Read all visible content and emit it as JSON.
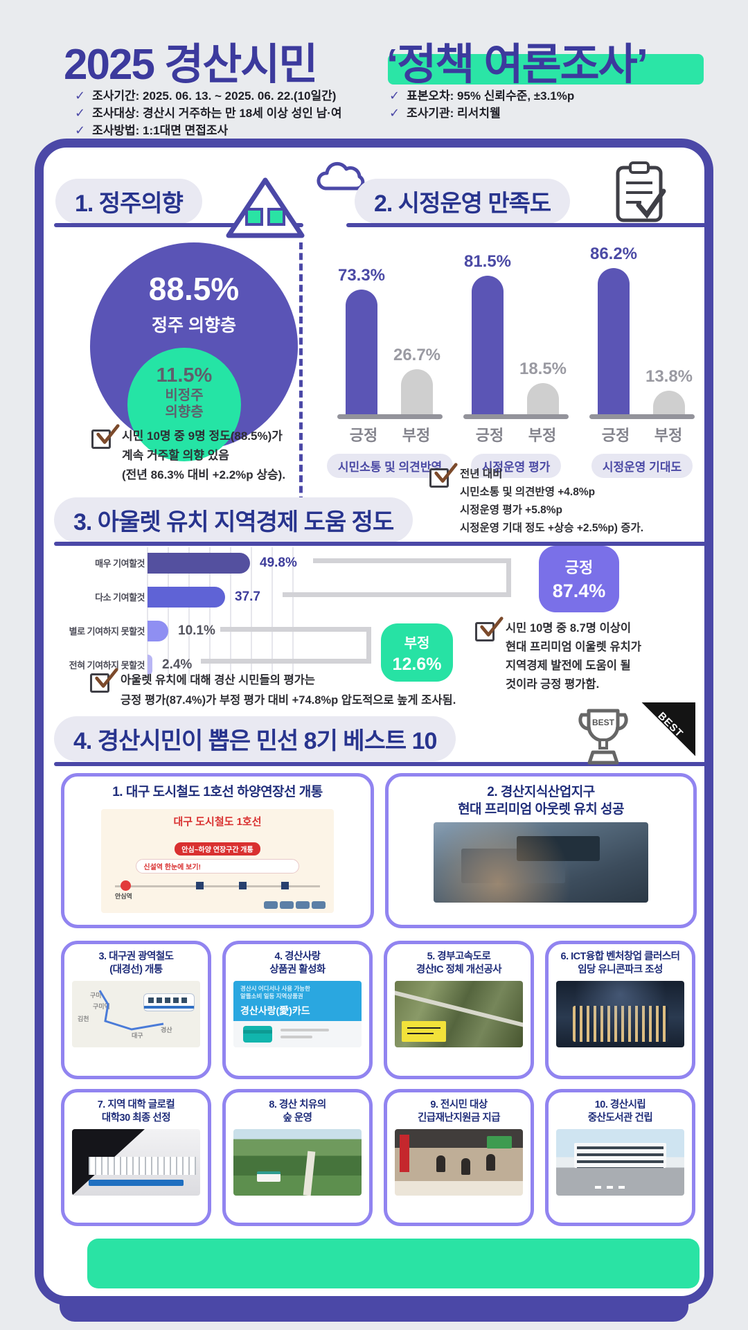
{
  "icons": {
    "check_glyph": "✓"
  },
  "colors": {
    "accent_purple": "#4b48a7",
    "accent_green": "#2be5a6",
    "title_navy": "#28348e",
    "bar_positive": "#5b55b5",
    "bar_negative": "#cfcfcf",
    "positive_box": "#7a70e8",
    "negative_box": "#27e2a4",
    "card_border": "#9184f0"
  },
  "header": {
    "title_left": "2025 경산시민",
    "title_right": "‘정책 여론조사’",
    "bullets_left": [
      "조사기간: 2025. 06. 13. ~ 2025. 06. 22.(10일간)",
      "조사대상: 경산시 거주하는 만 18세 이상 성인 남·여",
      "조사방법: 1:1대면 면접조사"
    ],
    "bullets_right": [
      "표본오차: 95% 신뢰수준, ±3.1%p",
      "조사기관: 리서치웰"
    ]
  },
  "section1": {
    "title": "1. 정주의향",
    "donut": {
      "main_value": "88.5%",
      "main_label": "정주 의향층",
      "sub_value": "11.5%",
      "sub_label_line1": "비정주",
      "sub_label_line2": "의향층"
    },
    "note_lines": [
      "시민 10명 중 9명 정도(88.5%)가",
      "계속 거주할 의향 있음",
      "(전년 86.3% 대비 +2.2%p 상승)."
    ]
  },
  "section2": {
    "title": "2. 시정운영 만족도",
    "note_lines": [
      "전년 대비",
      "시민소통 및 의견반영 +4.8%p",
      "시정운영 평가 +5.8%p",
      "시정운영 기대 정도 +상승 +2.5%p) 증가."
    ]
  },
  "section3": {
    "title": "3. 아울렛 유치 지역경제 도움 정도",
    "positive_box": {
      "label": "긍정",
      "value": "87.4%"
    },
    "negative_box": {
      "label": "부정",
      "value": "12.6%"
    },
    "note_left_lines": [
      "아울렛 유치에 대해 경산 시민들의 평가는",
      "긍정 평가(87.4%)가 부정 평가 대비 +74.8%p 압도적으로 높게 조사됨."
    ],
    "note_right_lines": [
      "시민 10명 중 8.7명 이상이",
      "현대 프리미엄 이울렛 유치가",
      "지역경제 발전에 도움이 될",
      "것이라 긍정 평가함."
    ]
  },
  "section4": {
    "title": "4. 경산시민이 뽑은 민선 8기 베스트 10",
    "trophy_label": "BEST",
    "ribbon_label": "BEST",
    "cards": [
      {
        "title_lines": [
          "1. 대구 도시철도 1호선 하양연장선 개통"
        ],
        "image": {
          "heading": "대구 도시철도 1호선",
          "badge": "안심~하양 연장구간 개통",
          "search": "신설역 한눈에 보기!",
          "station": "안심역"
        }
      },
      {
        "title_lines": [
          "2. 경산지식산업지구",
          "현대 프리미엄 아웃렛 유치 성공"
        ]
      },
      {
        "title_lines": [
          "3. 대구권 광역철도",
          "(대경선) 개통"
        ],
        "image": {
          "labels": [
            "구미",
            "구미역",
            "김천",
            "대구",
            "경산"
          ]
        }
      },
      {
        "title_lines": [
          "4. 경산사랑",
          "상품권 활성화"
        ],
        "image": {
          "line1": "경산시 어디서나 사용 가능한",
          "line2": "알뜰소비 일등 지역상품권",
          "name": "경산사랑(愛)카드"
        }
      },
      {
        "title_lines": [
          "5. 경부고속도로",
          "경산IC 정체 개선공사"
        ]
      },
      {
        "title_lines": [
          "6. ICT융합 벤처창업 클러스터",
          "임당 유니콘파크 조성"
        ]
      },
      {
        "title_lines": [
          "7. 지역 대학 글로컬",
          "대학30 최종 선정"
        ]
      },
      {
        "title_lines": [
          "8. 경산 치유의",
          "숲 운영"
        ]
      },
      {
        "title_lines": [
          "9. 전시민 대상",
          "긴급재난지원금 지급"
        ]
      },
      {
        "title_lines": [
          "10. 경산시립",
          "중산도서관 건립"
        ]
      }
    ]
  },
  "chart_data": [
    {
      "type": "pie",
      "title": "정주의향",
      "labels": [
        "정주 의향층",
        "비정주 의향층"
      ],
      "values": [
        88.5,
        11.5
      ],
      "colors": [
        "#5a54b6",
        "#25e4a5"
      ]
    },
    {
      "type": "bar",
      "title": "시정운영 만족도",
      "categories": [
        "시민소통 및 의견반영",
        "시정운영 평가",
        "시정운영 기대도"
      ],
      "series": [
        {
          "name": "긍정",
          "values": [
            73.3,
            81.5,
            86.2
          ],
          "value_labels": [
            "73.3%",
            "81.5%",
            "86.2%"
          ],
          "color": "#5b55b5"
        },
        {
          "name": "부정",
          "values": [
            26.7,
            18.5,
            13.8
          ],
          "value_labels": [
            "26.7%",
            "18.5%",
            "13.8%"
          ],
          "color": "#cfcfcf"
        }
      ],
      "ylim": [
        0,
        100
      ],
      "grid": false,
      "legend_position": "axis-labels-below-bars"
    },
    {
      "type": "bar",
      "orientation": "horizontal",
      "title": "아울렛 유치 지역경제 도움 정도",
      "categories": [
        "매우 기여할것",
        "다소 기여할것",
        "별로 기여하지 못할것",
        "전혀 기여하지 못할것"
      ],
      "values": [
        49.8,
        37.7,
        10.1,
        2.4
      ],
      "value_labels": [
        "49.8%",
        "37.7",
        "10.1%",
        "2.4%"
      ],
      "bar_colors": [
        "#54509f",
        "#5f63d6",
        "#8f8ff2",
        "#b9b6f4"
      ],
      "value_colors": [
        "#3e3d9b",
        "#3e3d9b",
        "#54545e",
        "#54545e"
      ],
      "xlim": [
        0,
        60
      ],
      "grid": true,
      "annotations": {
        "positive": "긍정 87.4%",
        "negative": "부정 12.6%"
      }
    }
  ]
}
